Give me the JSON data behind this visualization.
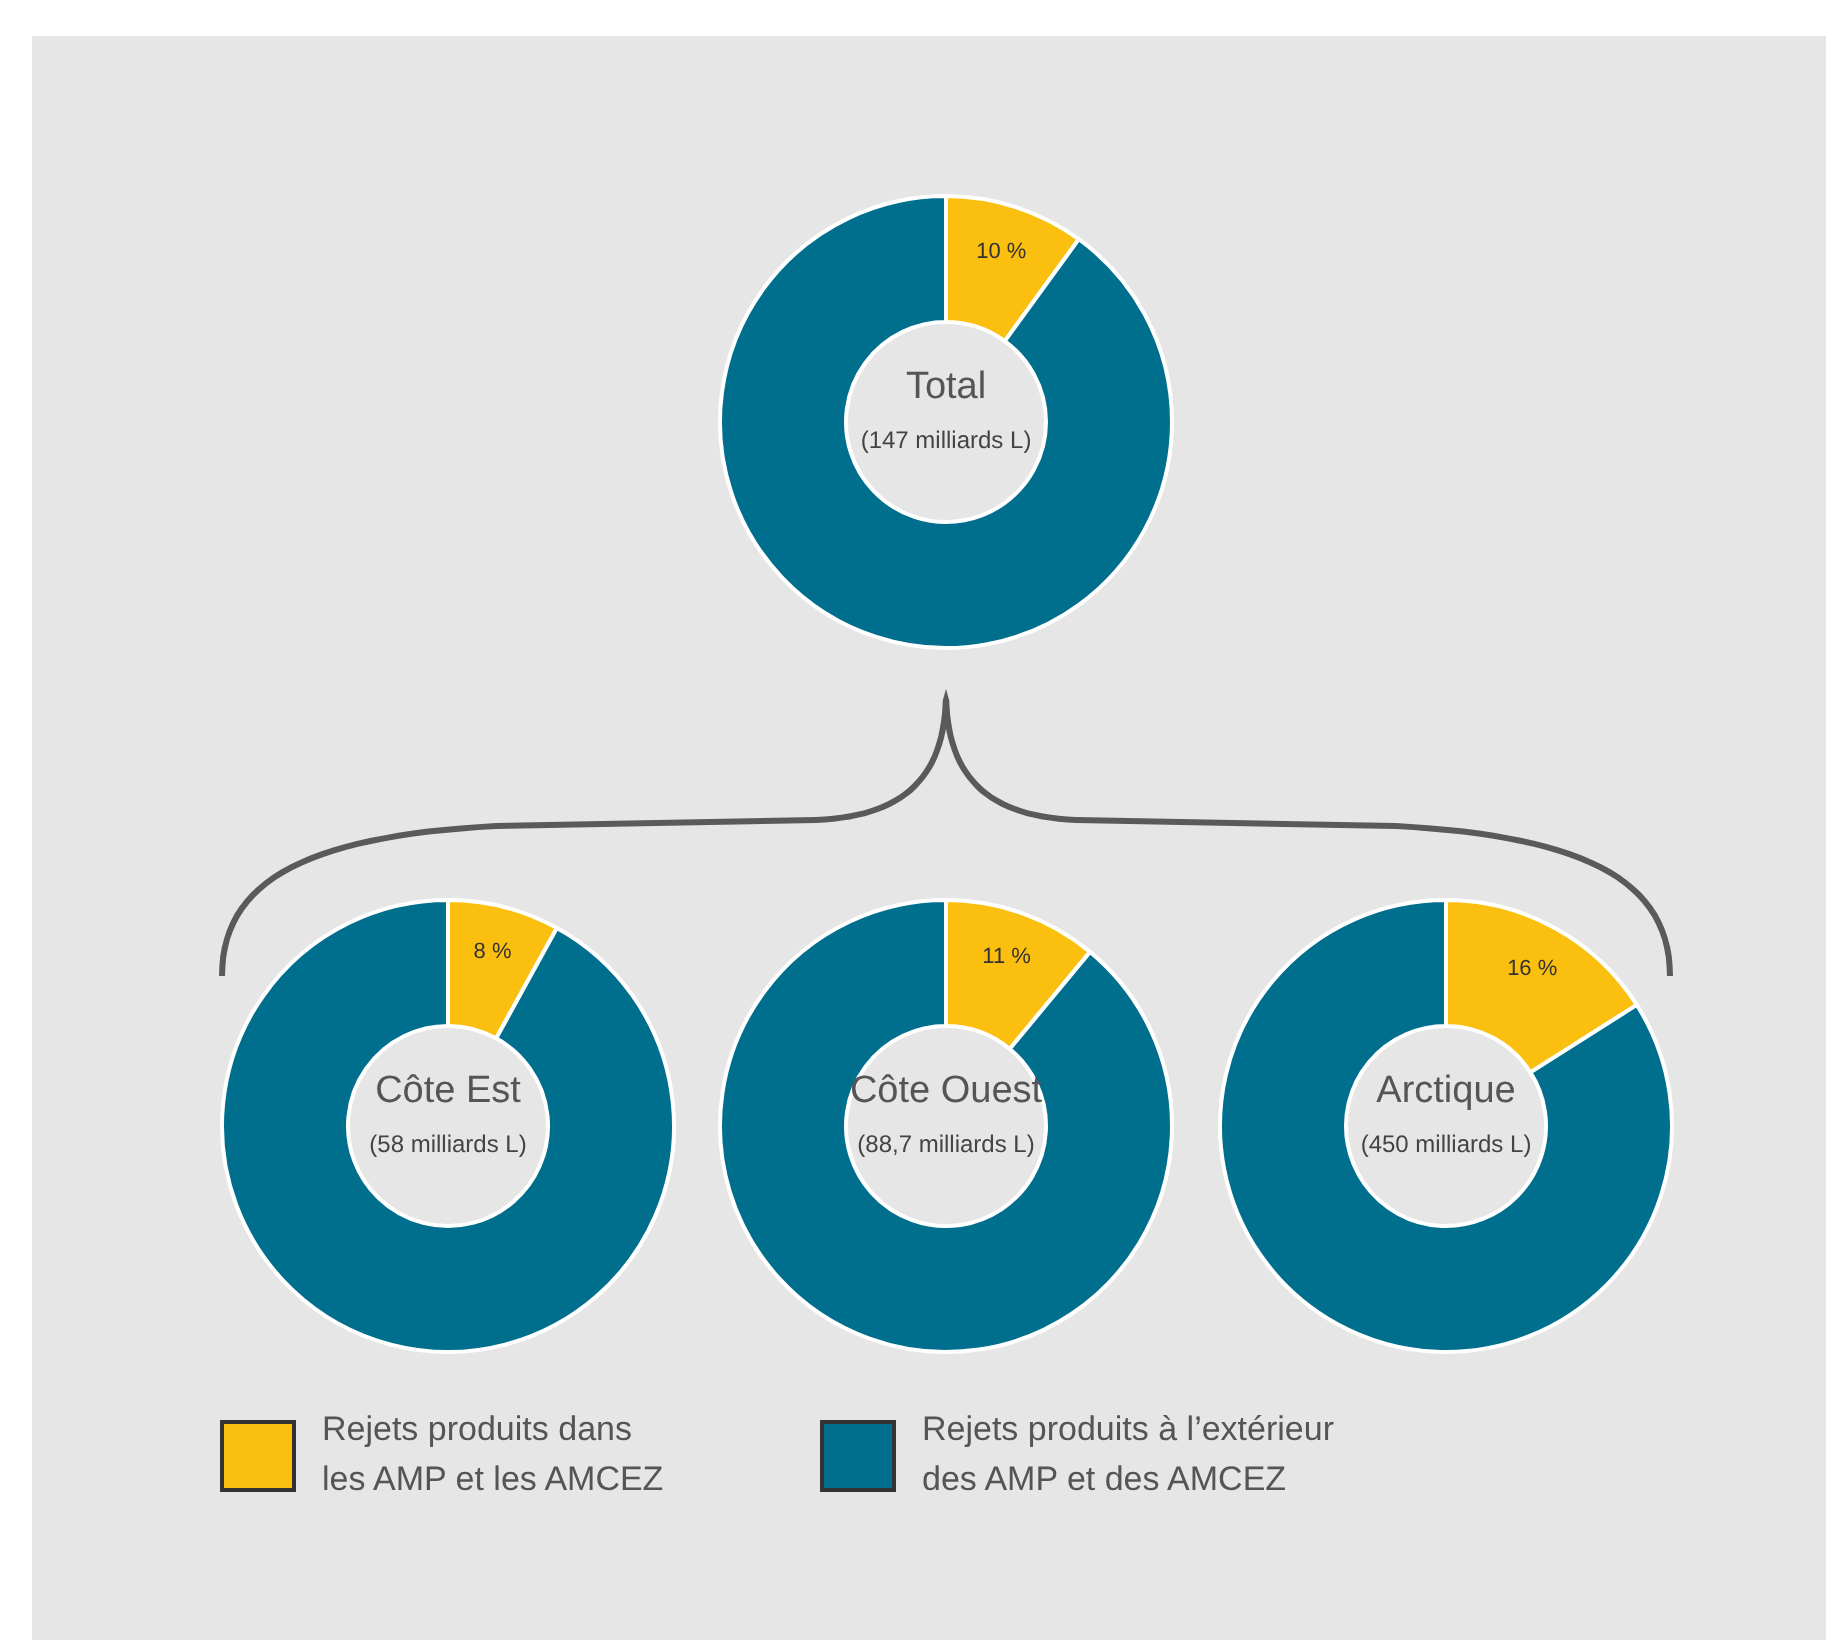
{
  "chart_data": [
    {
      "type": "donut",
      "title": "Total",
      "subtitle": "(147 milliards L)",
      "categories": [
        "Rejets produits dans les AMP et les AMCEZ",
        "Rejets produits à l’extérieur des AMP et des AMCEZ"
      ],
      "values": [
        10,
        90
      ],
      "colors": [
        "#fbbf0f",
        "#006f8e"
      ],
      "value_labels": [
        "10 %",
        null
      ],
      "legend": "bottom"
    },
    {
      "type": "donut",
      "title": "Côte Est",
      "subtitle": "(58 milliards L)",
      "values": [
        8,
        92
      ],
      "colors": [
        "#fbbf0f",
        "#006f8e"
      ],
      "value_labels": [
        "8 %",
        null
      ]
    },
    {
      "type": "donut",
      "title": "Côte Ouest",
      "subtitle": "(88,7 milliards L)",
      "values": [
        11,
        89
      ],
      "colors": [
        "#fbbf0f",
        "#006f8e"
      ],
      "value_labels": [
        "11 %",
        null
      ]
    },
    {
      "type": "donut",
      "title": "Arctique",
      "subtitle": "(450 milliards L)",
      "values": [
        16,
        84
      ],
      "colors": [
        "#fbbf0f",
        "#006f8e"
      ],
      "value_labels": [
        "16 %",
        null
      ]
    }
  ]
}
